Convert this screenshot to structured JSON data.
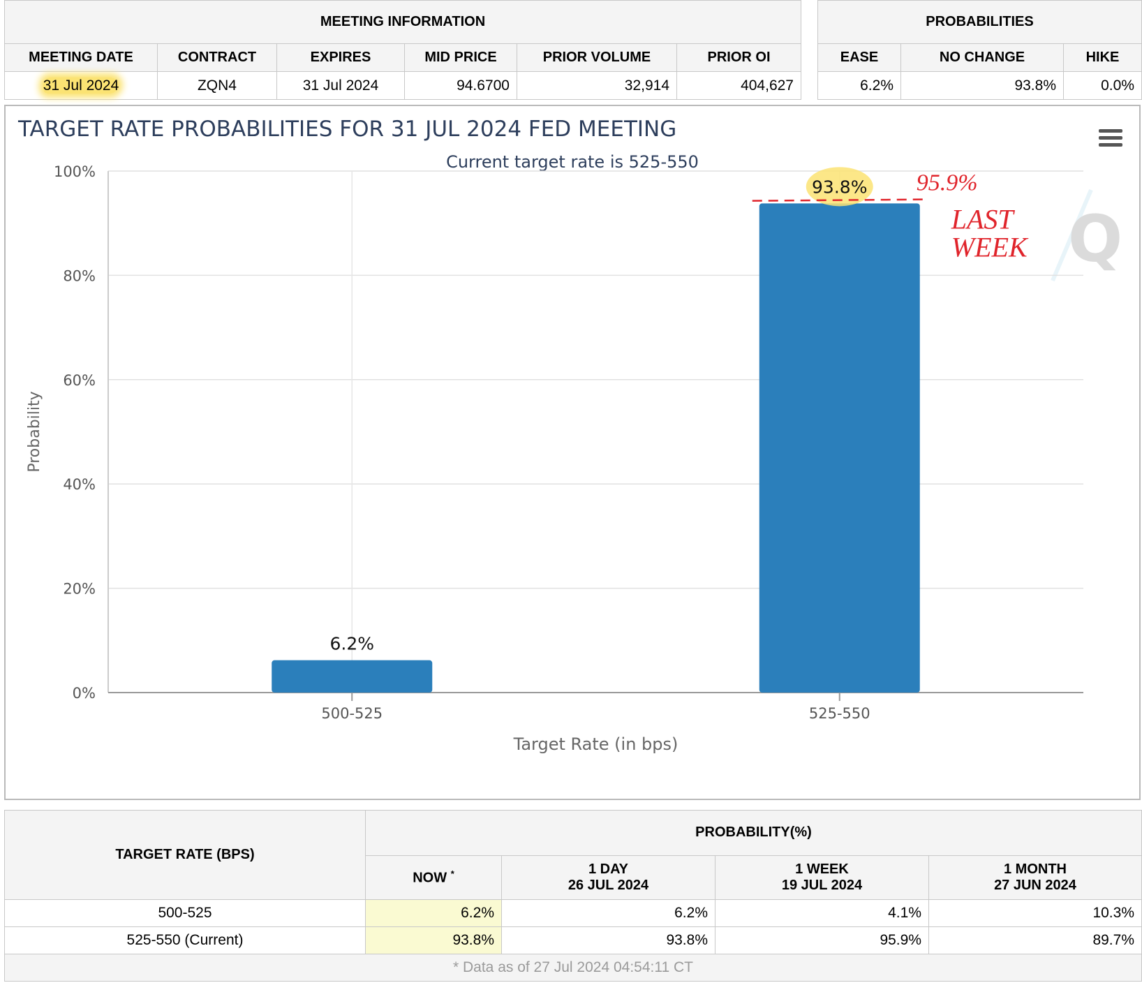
{
  "meeting_info": {
    "header": "MEETING INFORMATION",
    "columns": [
      "MEETING DATE",
      "CONTRACT",
      "EXPIRES",
      "MID PRICE",
      "PRIOR VOLUME",
      "PRIOR OI"
    ],
    "row": [
      "31 Jul 2024",
      "ZQN4",
      "31 Jul 2024",
      "94.6700",
      "32,914",
      "404,627"
    ]
  },
  "probabilities": {
    "header": "PROBABILITIES",
    "columns": [
      "EASE",
      "NO CHANGE",
      "HIKE"
    ],
    "row": [
      "6.2%",
      "93.8%",
      "0.0%"
    ]
  },
  "chart_data": {
    "type": "bar",
    "title": "TARGET RATE PROBABILITIES FOR 31 JUL 2024 FED MEETING",
    "subtitle": "Current target rate is 525-550",
    "categories": [
      "500-525",
      "525-550"
    ],
    "values": [
      6.2,
      93.8
    ],
    "data_labels": [
      "6.2%",
      "93.8%"
    ],
    "xlabel": "Target Rate (in bps)",
    "ylabel": "Probability",
    "ylim": [
      0,
      100
    ],
    "yticks": [
      "0%",
      "20%",
      "40%",
      "60%",
      "80%",
      "100%"
    ],
    "ytick_values": [
      0,
      20,
      40,
      60,
      80,
      100
    ],
    "bar_color": "#2b7fbb",
    "grid": true,
    "annotation": {
      "value": 95.9,
      "text": "95.9%",
      "note_line1": "LAST",
      "note_line2": "WEEK",
      "color": "#e0242b"
    },
    "menu_icon": "hamburger-menu-icon",
    "watermark": "Q"
  },
  "history": {
    "target_rate_header": "TARGET RATE (BPS)",
    "probability_header": "PROBABILITY(%)",
    "now_label": "NOW",
    "now_marker": "*",
    "periods": [
      {
        "line1": "1 DAY",
        "line2": "26 JUL 2024"
      },
      {
        "line1": "1 WEEK",
        "line2": "19 JUL 2024"
      },
      {
        "line1": "1 MONTH",
        "line2": "27 JUN 2024"
      }
    ],
    "rows": [
      {
        "rate": "500-525",
        "now": "6.2%",
        "values": [
          "6.2%",
          "4.1%",
          "10.3%"
        ]
      },
      {
        "rate": "525-550 (Current)",
        "now": "93.8%",
        "values": [
          "93.8%",
          "95.9%",
          "89.7%"
        ]
      }
    ],
    "footnote": "* Data as of 27 Jul 2024 04:54:11 CT"
  },
  "colors": {
    "highlight": "#fbe373",
    "now_cell": "#fafad2",
    "header_bg": "#f4f4f4"
  }
}
